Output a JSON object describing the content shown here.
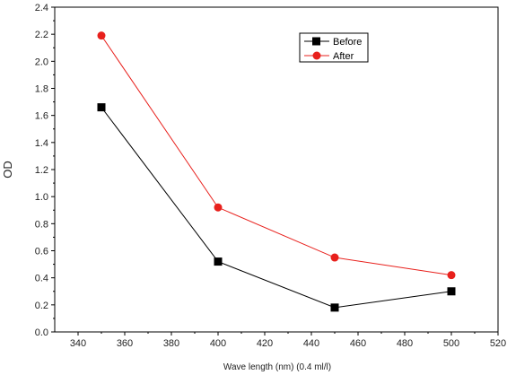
{
  "chart_data": {
    "type": "line",
    "title": "",
    "xlabel": "Wave length (nm) (0.4 ml/l)",
    "ylabel": "OD",
    "xlim": [
      330,
      520
    ],
    "ylim": [
      0.0,
      2.4
    ],
    "xticks": [
      340,
      360,
      380,
      400,
      420,
      440,
      460,
      480,
      500,
      520
    ],
    "xtick_labels": [
      "340",
      "360",
      "380",
      "400",
      "420",
      "440",
      "460",
      "480",
      "500",
      "520"
    ],
    "yticks": [
      0.0,
      0.2,
      0.4,
      0.6,
      0.8,
      1.0,
      1.2,
      1.4,
      1.6,
      1.8,
      2.0,
      2.2,
      2.4
    ],
    "ytick_labels": [
      "0.0",
      "0.2",
      "0.4",
      "0.6",
      "0.8",
      "1.0",
      "1.2",
      "1.4",
      "1.6",
      "1.8",
      "2.0",
      "2.2",
      "2.4"
    ],
    "grid": false,
    "legend_position": "top-right",
    "x": [
      350,
      400,
      450,
      500
    ],
    "series": [
      {
        "name": "Before",
        "values": [
          1.66,
          0.52,
          0.18,
          0.3
        ],
        "color": "#000000",
        "marker": "square"
      },
      {
        "name": "After",
        "values": [
          2.19,
          0.92,
          0.55,
          0.42
        ],
        "color": "#e8201c",
        "marker": "circle"
      }
    ]
  }
}
